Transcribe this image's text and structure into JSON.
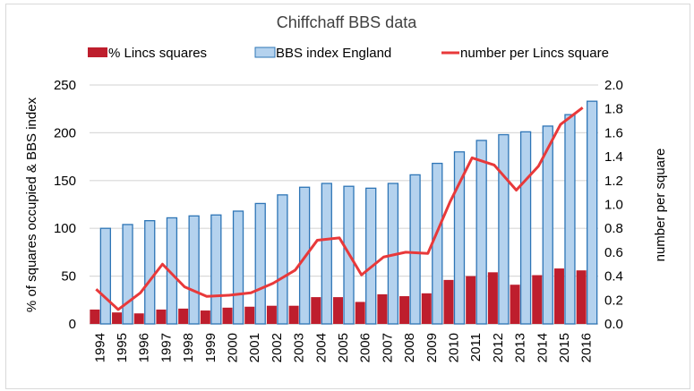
{
  "chart_data": {
    "type": "bar",
    "title": "Chiffchaff BBS data",
    "categories": [
      "1994",
      "1995",
      "1996",
      "1997",
      "1998",
      "1999",
      "2000",
      "2001",
      "2002",
      "2003",
      "2004",
      "2005",
      "2006",
      "2007",
      "2008",
      "2009",
      "2010",
      "2011",
      "2012",
      "2013",
      "2014",
      "2015",
      "2016"
    ],
    "series": [
      {
        "name": "% Lincs squares",
        "type": "bar",
        "axis": "left",
        "color": "#be1e2d",
        "values": [
          15,
          12,
          11,
          15,
          16,
          14,
          17,
          18,
          19,
          19,
          28,
          28,
          23,
          31,
          29,
          32,
          46,
          50,
          54,
          41,
          51,
          58,
          56
        ]
      },
      {
        "name": "BBS index England",
        "type": "bar",
        "axis": "left",
        "color": "#b4d2ee",
        "border": "#2e75b6",
        "values": [
          100,
          104,
          108,
          111,
          113,
          114,
          118,
          126,
          135,
          143,
          147,
          144,
          142,
          147,
          156,
          168,
          180,
          192,
          198,
          201,
          207,
          219,
          233
        ]
      },
      {
        "name": "number per Lincs square",
        "type": "line",
        "axis": "right",
        "color": "#e8393a",
        "values": [
          0.29,
          0.12,
          0.26,
          0.5,
          0.31,
          0.23,
          0.24,
          0.26,
          0.34,
          0.45,
          0.7,
          0.72,
          0.41,
          0.56,
          0.6,
          0.59,
          1.02,
          1.39,
          1.33,
          1.12,
          1.32,
          1.67,
          1.81
        ]
      }
    ],
    "ylabel": "% of squares occupied & BBS index",
    "ylabel_right": "number per square",
    "xlabel": "",
    "ylim": [
      0,
      250
    ],
    "ylim_right": [
      0,
      2.0
    ],
    "yticks": [
      "0",
      "50",
      "100",
      "150",
      "200",
      "250"
    ],
    "yticks_right": [
      "0.0",
      "0.2",
      "0.4",
      "0.6",
      "0.8",
      "1.0",
      "1.2",
      "1.4",
      "1.6",
      "1.8",
      "2.0"
    ],
    "grid": true,
    "legend_position": "top"
  }
}
